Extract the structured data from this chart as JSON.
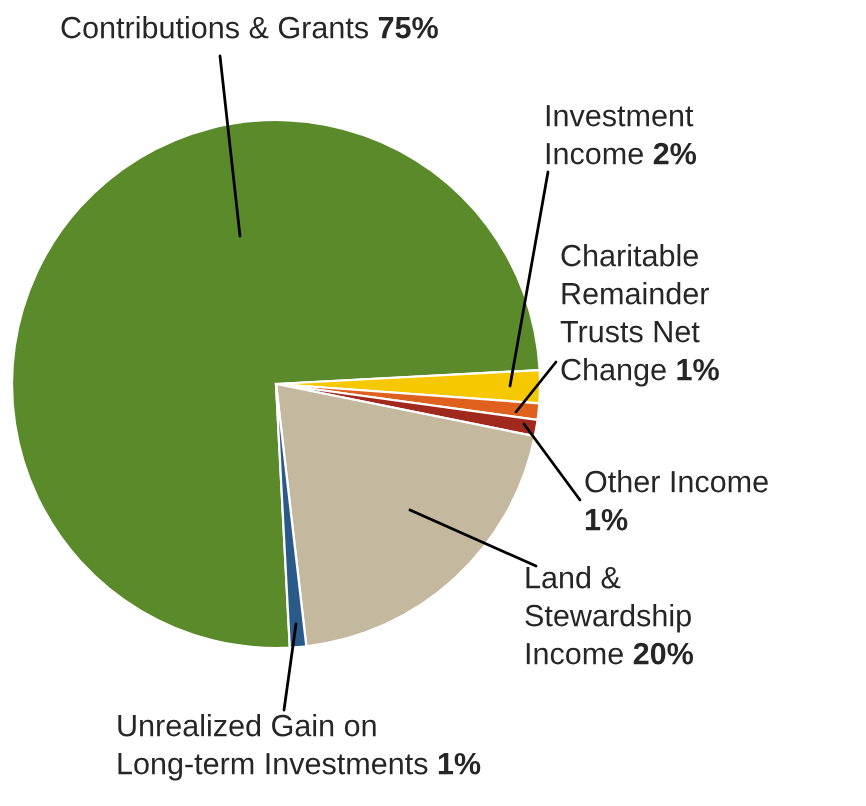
{
  "chart_data": {
    "type": "pie",
    "categories": [
      "Contributions & Grants",
      "Investment\nIncome",
      "Charitable\nRemainder\nTrusts Net\nChange",
      "Other Income\n",
      "Land &\nStewardship\nIncome",
      "Unrealized Gain on\nLong-term Investments"
    ],
    "values": [
      75,
      2,
      1,
      1,
      20,
      1
    ],
    "value_labels": [
      "75%",
      "2%",
      "1%",
      "1%",
      "20%",
      "1%"
    ],
    "colors": [
      "#5b8a2a",
      "#f5c800",
      "#e0601e",
      "#a0281c",
      "#c4b89e",
      "#2a5a8a"
    ]
  }
}
